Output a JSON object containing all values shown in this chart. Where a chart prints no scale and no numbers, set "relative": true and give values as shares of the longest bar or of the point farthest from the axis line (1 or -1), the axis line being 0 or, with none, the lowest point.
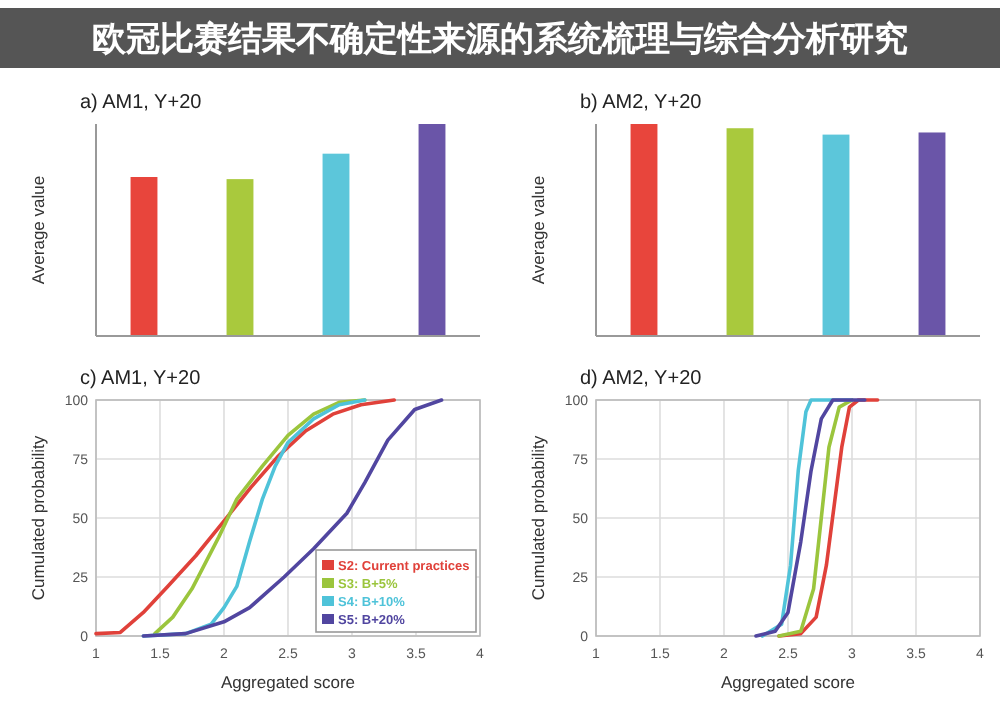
{
  "chart_data": [
    {
      "type": "bar",
      "title": "a) AM1, Y+20",
      "ylabel": "Average value",
      "relative": true,
      "annotations": [
        "欧冠比赛结果不确定性来源的系统梳理与综合分析研究"
      ],
      "categories": [
        null,
        null,
        null,
        null
      ],
      "values": [
        0.75,
        0.74,
        0.86,
        1
      ],
      "colors": [
        "#e8453c",
        "#a9c93d",
        "#5cc6da",
        "#6a55a8"
      ]
    },
    {
      "type": "bar",
      "title": "b) AM2, Y+20",
      "ylabel": "Average value",
      "relative": true,
      "categories": [
        null,
        null,
        null,
        null
      ],
      "values": [
        1,
        0.98,
        0.95,
        0.96
      ],
      "colors": [
        "#e8453c",
        "#a9c93d",
        "#5cc6da",
        "#6a55a8"
      ]
    },
    {
      "type": "line",
      "title": "c) AM1, Y+20",
      "ylabel": "Cumulated probability",
      "xlabel": "Aggregated score",
      "xlim": [
        1,
        4
      ],
      "ylim": [
        0,
        100
      ],
      "xticks": [
        1,
        1.5,
        2,
        2.5,
        3,
        3.5,
        4
      ],
      "yticks": [
        0,
        25,
        50,
        75,
        100
      ],
      "grid": true,
      "legend": "bottom right",
      "series": [
        {
          "name": "S2: Current practices",
          "color": "#e0413a",
          "x": [
            1,
            1.19,
            1.37,
            1.56,
            1.78,
            1.99,
            2.21,
            2.42,
            2.64,
            2.85,
            3.07,
            3.33
          ],
          "values": [
            1,
            1.5,
            10,
            21,
            34,
            48,
            63,
            76,
            87,
            94,
            98,
            100
          ]
        },
        {
          "name": "S3: B+5%",
          "color": "#9bc53d",
          "x": [
            1.46,
            1.6,
            1.75,
            1.96,
            2.1,
            2.3,
            2.5,
            2.7,
            2.9,
            3.1
          ],
          "values": [
            1,
            8,
            20,
            42,
            58,
            72,
            85,
            94,
            99,
            100
          ]
        },
        {
          "name": "S4: B+10%",
          "color": "#4fc3d9",
          "x": [
            1.37,
            1.7,
            1.9,
            2,
            2.1,
            2.2,
            2.3,
            2.4,
            2.5,
            2.7,
            2.9,
            3.1
          ],
          "values": [
            0,
            1,
            5,
            12,
            21,
            40,
            58,
            72,
            82,
            92,
            98,
            100
          ]
        },
        {
          "name": "S5: B+20%",
          "color": "#5146a0",
          "x": [
            1.37,
            1.7,
            2,
            2.2,
            2.47,
            2.7,
            2.96,
            3.1,
            3.28,
            3.49,
            3.7
          ],
          "values": [
            0,
            1,
            6,
            12,
            25,
            37,
            52,
            65,
            83,
            96,
            100
          ]
        }
      ]
    },
    {
      "type": "line",
      "title": "d) AM2, Y+20",
      "ylabel": "Cumulated probability",
      "xlabel": "Aggregated score",
      "xlim": [
        1,
        4
      ],
      "ylim": [
        0,
        100
      ],
      "xticks": [
        1,
        1.5,
        2,
        2.5,
        3,
        3.5,
        4
      ],
      "yticks": [
        0,
        25,
        50,
        75,
        100
      ],
      "grid": true,
      "series": [
        {
          "color": "#e0413a",
          "x": [
            2.43,
            2.6,
            2.72,
            2.8,
            2.86,
            2.92,
            2.98,
            3.05,
            3.2
          ],
          "values": [
            0,
            1,
            8,
            30,
            55,
            80,
            97,
            100,
            100
          ]
        },
        {
          "color": "#9bc53d",
          "x": [
            2.43,
            2.6,
            2.7,
            2.76,
            2.82,
            2.9,
            3
          ],
          "values": [
            0,
            2,
            20,
            50,
            80,
            97,
            100
          ]
        },
        {
          "color": "#4fc3d9",
          "x": [
            2.3,
            2.45,
            2.52,
            2.58,
            2.64,
            2.68,
            3
          ],
          "values": [
            0,
            5,
            30,
            70,
            95,
            100,
            100
          ]
        },
        {
          "color": "#5146a0",
          "x": [
            2.25,
            2.4,
            2.5,
            2.6,
            2.68,
            2.76,
            2.85,
            3.1
          ],
          "values": [
            0,
            2,
            10,
            40,
            70,
            92,
            100,
            100
          ]
        }
      ]
    }
  ]
}
